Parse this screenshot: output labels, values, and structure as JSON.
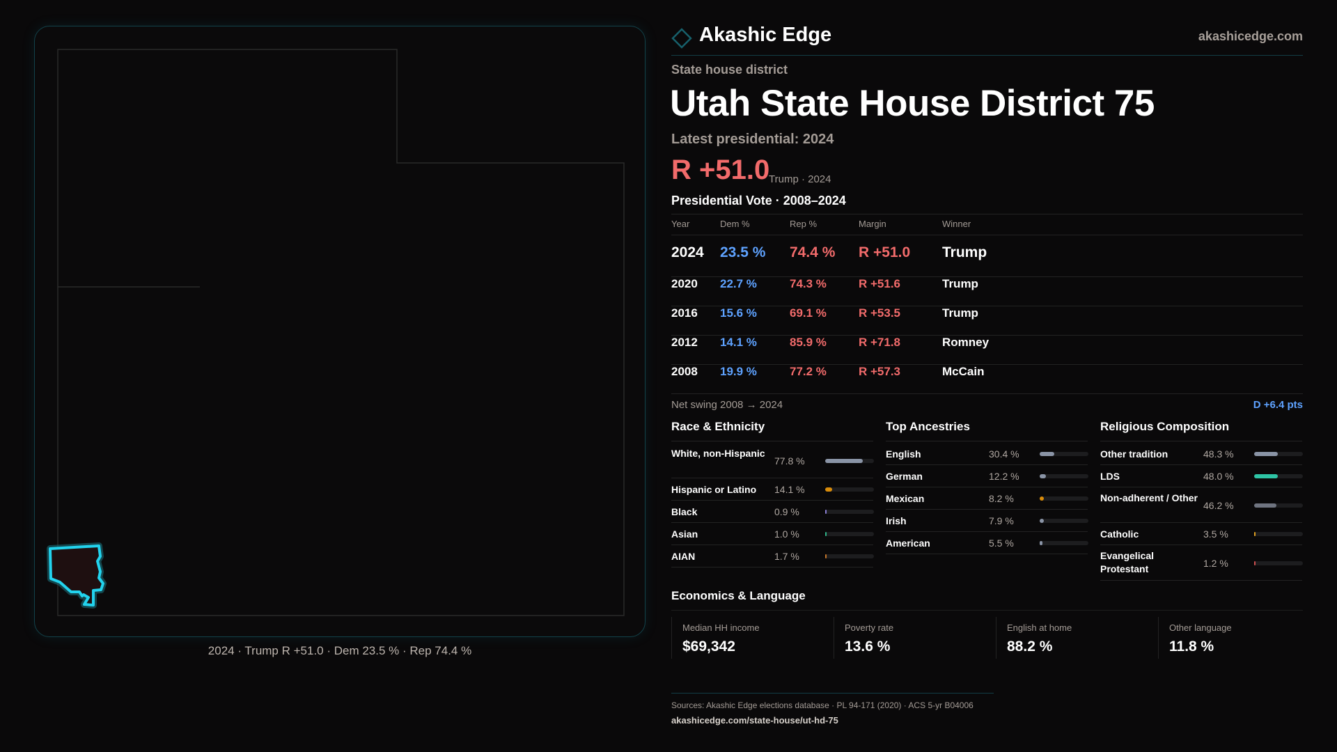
{
  "brand": {
    "name": "Akashic Edge",
    "site": "akashicedge.com",
    "icon": "diamond-icon",
    "accent": "#1fb8c9"
  },
  "header": {
    "kicker": "State house district",
    "title": "Utah State House District 75",
    "latest_label": "Latest presidential: 2024",
    "margin": "R +51.0",
    "margin_sub": "Trump · 2024"
  },
  "vote": {
    "title": "Presidential Vote · 2008–2024",
    "columns": [
      "Year",
      "Dem %",
      "Rep %",
      "Margin",
      "Winner"
    ],
    "rows": [
      [
        "2024",
        "23.5 %",
        "74.4 %",
        "R +51.0",
        "Trump"
      ],
      [
        "2020",
        "22.7 %",
        "74.3 %",
        "R +51.6",
        "Trump"
      ],
      [
        "2016",
        "15.6 %",
        "69.1 %",
        "R +53.5",
        "Trump"
      ],
      [
        "2012",
        "14.1 %",
        "85.9 %",
        "R +71.8",
        "Romney"
      ],
      [
        "2008",
        "19.9 %",
        "77.2 %",
        "R +57.3",
        "McCain"
      ]
    ],
    "swing_label": "Net swing 2008 → 2024",
    "swing_value": "D +6.4 pts"
  },
  "race": {
    "title": "Race & Ethnicity",
    "items": [
      {
        "label": "White, non-Hispanic",
        "pct": "77.8 %",
        "value": 77.8,
        "color": "#8a94a6"
      },
      {
        "label": "Hispanic or Latino",
        "pct": "14.1 %",
        "value": 14.1,
        "color": "#d98c0a"
      },
      {
        "label": "Black",
        "pct": "0.9 %",
        "value": 0.9,
        "color": "#8b7fd6"
      },
      {
        "label": "Asian",
        "pct": "1.0 %",
        "value": 1.0,
        "color": "#2fb58a"
      },
      {
        "label": "AIAN",
        "pct": "1.7 %",
        "value": 1.7,
        "color": "#c7772a"
      }
    ]
  },
  "ancestry": {
    "title": "Top Ancestries",
    "items": [
      {
        "label": "English",
        "pct": "30.4 %",
        "value": 30.4,
        "color": "#8a94a6"
      },
      {
        "label": "German",
        "pct": "12.2 %",
        "value": 12.2,
        "color": "#8a94a6"
      },
      {
        "label": "Mexican",
        "pct": "8.2 %",
        "value": 8.2,
        "color": "#d98c0a"
      },
      {
        "label": "Irish",
        "pct": "7.9 %",
        "value": 7.9,
        "color": "#8a94a6"
      },
      {
        "label": "American",
        "pct": "5.5 %",
        "value": 5.5,
        "color": "#8a94a6"
      }
    ]
  },
  "religion": {
    "title": "Religious Composition",
    "items": [
      {
        "label": "Other tradition",
        "pct": "48.3 %",
        "value": 48.3,
        "color": "#8a94a6"
      },
      {
        "label": "LDS",
        "pct": "48.0 %",
        "value": 48.0,
        "color": "#2ec4a5"
      },
      {
        "label": "Non-adherent / Other",
        "pct": "46.2 %",
        "value": 46.2,
        "color": "#6f7480"
      },
      {
        "label": "Catholic",
        "pct": "3.5 %",
        "value": 3.5,
        "color": "#e0a020"
      },
      {
        "label": "Evangelical Protestant",
        "pct": "1.2 %",
        "value": 1.2,
        "color": "#d05050"
      }
    ]
  },
  "economics": {
    "title": "Economics & Language",
    "cards": [
      {
        "label": "Median HH income",
        "value": "$69,342"
      },
      {
        "label": "Poverty rate",
        "value": "13.6 %"
      },
      {
        "label": "English at home",
        "value": "88.2 %"
      },
      {
        "label": "Other language",
        "value": "11.8 %"
      }
    ]
  },
  "map": {
    "caption": "2024 · Trump R +51.0 · Dem 23.5 % · Rep 74.4 %",
    "highlight_color": "#22d3ee",
    "district_fill": "#1e0f10"
  },
  "footer": {
    "sources": "Sources: Akashic Edge elections database · PL 94-171 (2020) · ACS 5-yr B04006",
    "url": "akashicedge.com/state-house/ut-hd-75"
  }
}
